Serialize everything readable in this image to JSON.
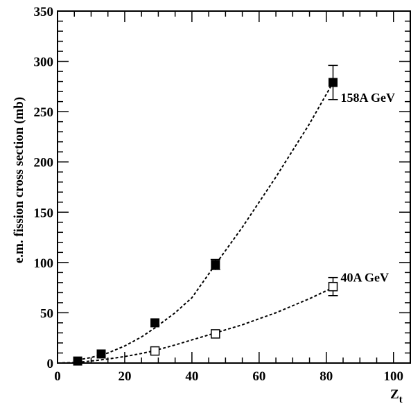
{
  "chart_data": {
    "type": "scatter",
    "title": "",
    "xlabel": "Z",
    "xlabel_subscript": "t",
    "ylabel": "e.m. fission cross section (mb)",
    "xlim": [
      0,
      105
    ],
    "ylim": [
      0,
      350
    ],
    "x_ticks": [
      0,
      20,
      40,
      60,
      80,
      100
    ],
    "y_ticks": [
      0,
      50,
      100,
      150,
      200,
      250,
      300,
      350
    ],
    "grid": false,
    "legend": "none",
    "series": [
      {
        "name": "158A GeV",
        "marker": "filled-square",
        "color": "#000000",
        "points": [
          {
            "x": 6,
            "y": 2,
            "err": 0
          },
          {
            "x": 13,
            "y": 9,
            "err": 0
          },
          {
            "x": 29,
            "y": 40,
            "err": 0
          },
          {
            "x": 47,
            "y": 98,
            "err": 5
          },
          {
            "x": 82,
            "y": 279,
            "err": 17
          }
        ],
        "fit": [
          [
            6,
            3
          ],
          [
            10,
            5.5
          ],
          [
            15,
            10
          ],
          [
            20,
            17
          ],
          [
            25,
            26
          ],
          [
            29,
            35
          ],
          [
            35,
            50
          ],
          [
            40,
            65
          ],
          [
            47,
            98
          ],
          [
            55,
            135
          ],
          [
            65,
            185
          ],
          [
            75,
            238
          ],
          [
            82,
            279
          ]
        ]
      },
      {
        "name": "40A GeV",
        "marker": "open-square",
        "color": "#000000",
        "points": [
          {
            "x": 29,
            "y": 12,
            "err": 0
          },
          {
            "x": 47,
            "y": 29,
            "err": 0
          },
          {
            "x": 82,
            "y": 76,
            "err": 9
          }
        ],
        "fit": [
          [
            0,
            0
          ],
          [
            5,
            0.5
          ],
          [
            10,
            2
          ],
          [
            15,
            4
          ],
          [
            20,
            6.5
          ],
          [
            25,
            9.5
          ],
          [
            29,
            12.5
          ],
          [
            35,
            18
          ],
          [
            40,
            23
          ],
          [
            47,
            30
          ],
          [
            55,
            38
          ],
          [
            65,
            50
          ],
          [
            75,
            64
          ],
          [
            82,
            75
          ]
        ]
      }
    ]
  }
}
